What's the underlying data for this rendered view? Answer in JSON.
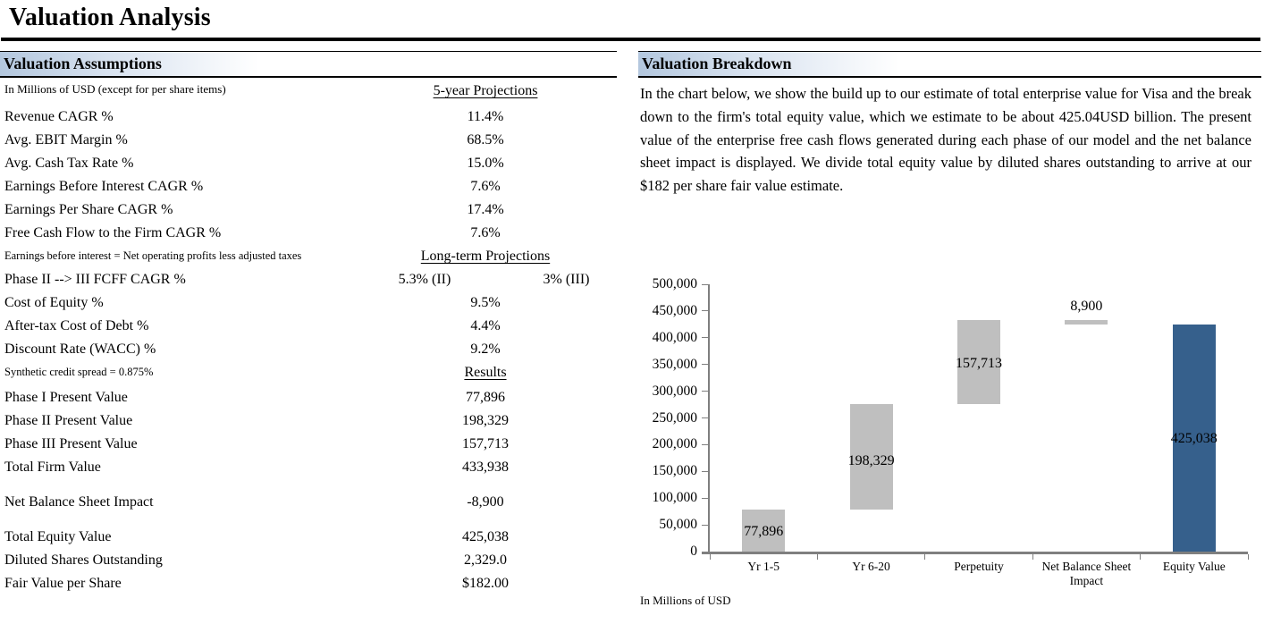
{
  "title": "Valuation Analysis",
  "assumptions": {
    "header": "Valuation Assumptions",
    "rows": [
      {
        "type": "colhead",
        "label": "In Millions of USD (except for per share items)",
        "value": "5-year Projections",
        "underline": true
      },
      {
        "type": "data",
        "label": "Revenue CAGR %",
        "value": "11.4%"
      },
      {
        "type": "data",
        "label": "Avg. EBIT Margin %",
        "value": "68.5%"
      },
      {
        "type": "data",
        "label": "Avg. Cash Tax Rate %",
        "value": "15.0%"
      },
      {
        "type": "data",
        "label": "Earnings Before Interest CAGR %",
        "value": "7.6%"
      },
      {
        "type": "data",
        "label": "Earnings Per Share CAGR %",
        "value": "17.4%"
      },
      {
        "type": "data",
        "label": "Free Cash Flow to the Firm CAGR %",
        "value": "7.6%"
      },
      {
        "type": "fnhead",
        "label": "Earnings before interest = Net operating profits less adjusted taxes",
        "value": "Long-term Projections",
        "underline": true
      },
      {
        "type": "dual",
        "label": "Phase II --> III FCFF CAGR %",
        "value1": "5.3% (II)",
        "value2": "3% (III)"
      },
      {
        "type": "data",
        "label": "Cost of Equity %",
        "value": "9.5%"
      },
      {
        "type": "data",
        "label": "After-tax Cost of Debt %",
        "value": "4.4%"
      },
      {
        "type": "data",
        "label": "Discount Rate (WACC) %",
        "value": "9.2%"
      },
      {
        "type": "fnhead2",
        "label": "Synthetic credit spread = 0.875%",
        "value": "Results",
        "underline": true
      },
      {
        "type": "data",
        "label": "Phase I Present Value",
        "value": "77,896"
      },
      {
        "type": "data",
        "label": "Phase II Present Value",
        "value": "198,329"
      },
      {
        "type": "data",
        "label": "Phase III Present Value",
        "value": "157,713"
      },
      {
        "type": "data",
        "label": "Total Firm Value",
        "value": "433,938"
      },
      {
        "type": "spacer"
      },
      {
        "type": "data",
        "label": "Net Balance Sheet Impact",
        "value": "-8,900"
      },
      {
        "type": "spacer"
      },
      {
        "type": "data",
        "label": "Total Equity Value",
        "value": "425,038"
      },
      {
        "type": "data",
        "label": "Diluted Shares Outstanding",
        "value": "2,329.0"
      },
      {
        "type": "data",
        "label": "Fair Value per Share",
        "value": "$182.00"
      }
    ]
  },
  "breakdown": {
    "header": "Valuation Breakdown",
    "paragraph": "In the chart below, we show the build up to our estimate of total enterprise value for Visa and the break down to the firm's total equity value, which we estimate to be about 425.04USD billion. The present value of the enterprise free cash flows generated during each phase of our model and the net balance sheet impact is displayed. We divide total equity value by diluted shares outstanding to arrive at our $182 per share fair value estimate."
  },
  "chart_data": {
    "type": "bar",
    "subtype": "waterfall",
    "title": "",
    "xlabel": "",
    "ylabel": "",
    "footnote": "In Millions of USD",
    "categories": [
      "Yr 1-5",
      "Yr 6-20",
      "Perpetuity",
      "Net Balance Sheet Impact",
      "Equity Value"
    ],
    "bars": [
      {
        "category": "Yr 1-5",
        "start": 0,
        "end": 77896,
        "value": 77896,
        "label": "77,896",
        "color": "gray",
        "label_v": 36000
      },
      {
        "category": "Yr 6-20",
        "start": 77896,
        "end": 276225,
        "value": 198329,
        "label": "198,329",
        "color": "gray",
        "label_v": 169000
      },
      {
        "category": "Perpetuity",
        "start": 276225,
        "end": 433938,
        "value": 157713,
        "label": "157,713",
        "color": "gray",
        "label_v": 351000
      },
      {
        "category": "Net Balance Sheet Impact",
        "start": 425038,
        "end": 433938,
        "value": -8900,
        "label": "8,900",
        "color": "gray",
        "label_v": 458000
      },
      {
        "category": "Equity Value",
        "start": 0,
        "end": 425038,
        "value": 425038,
        "label": "425,038",
        "color": "blue",
        "label_v": 211000
      }
    ],
    "ylim": [
      0,
      500000
    ],
    "ytick_step": 50000,
    "grid": false,
    "legend": false,
    "colors": {
      "gray": "#bfbfbf",
      "blue": "#36608c",
      "axis": "#7f7f7f"
    }
  }
}
